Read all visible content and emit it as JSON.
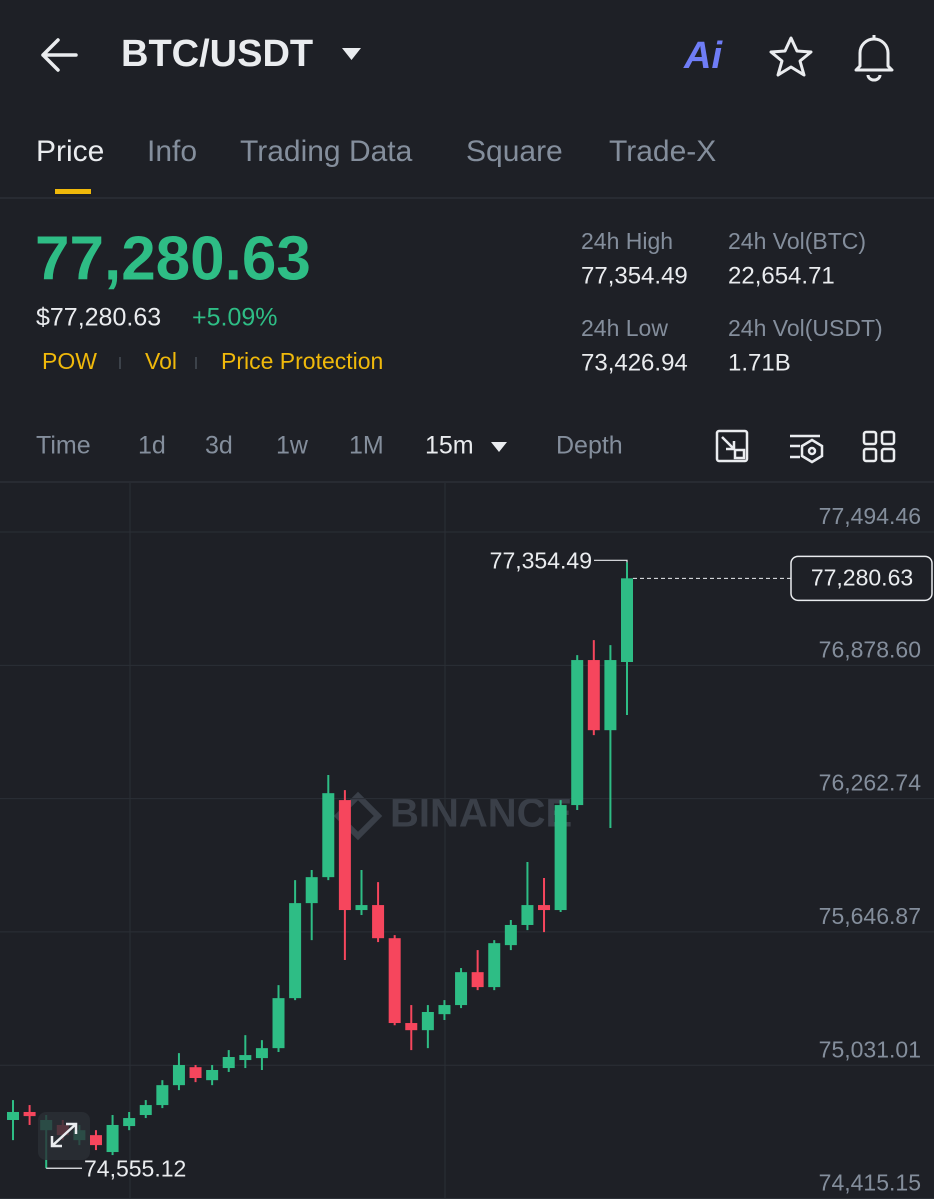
{
  "header": {
    "pair": "BTC/USDT",
    "ai": "Ai"
  },
  "tabs": {
    "items": [
      "Price",
      "Info",
      "Trading Data",
      "Square",
      "Trade-X"
    ],
    "active": 0
  },
  "price": {
    "last": "77,280.63",
    "usd": "$77,280.63",
    "change": "+5.09%",
    "tags": [
      "POW",
      "Vol",
      "Price Protection"
    ]
  },
  "stats": [
    {
      "label": "24h High",
      "value": "77,354.49"
    },
    {
      "label": "24h Vol(BTC)",
      "value": "22,654.71"
    },
    {
      "label": "24h Low",
      "value": "73,426.94"
    },
    {
      "label": "24h Vol(USDT)",
      "value": "1.71B"
    }
  ],
  "intervals": {
    "items": [
      "Time",
      "1d",
      "3d",
      "1w",
      "1M",
      "15m",
      "Depth"
    ],
    "active": 5
  },
  "chart_data": {
    "type": "candlestick",
    "watermark": "BINANCE",
    "up_color": "#2ebd85",
    "down_color": "#f6465d",
    "ylim": [
      74413,
      77721
    ],
    "yticks": [
      {
        "value": 77494.46,
        "label": "77,494.46"
      },
      {
        "value": 76878.6,
        "label": "76,878.60"
      },
      {
        "value": 76262.74,
        "label": "76,262.74"
      },
      {
        "value": 75646.87,
        "label": "75,646.87"
      },
      {
        "value": 75031.01,
        "label": "75,031.01"
      },
      {
        "value": 74415.15,
        "label": "74,415.15"
      }
    ],
    "grid": true,
    "high_label": {
      "value": 77354.49,
      "label": "77,354.49"
    },
    "low_label": {
      "value": 74555.12,
      "label": "74,555.12"
    },
    "last_price": {
      "value": 77280.63,
      "label": "77,280.63"
    },
    "open": [
      74778,
      74815,
      74731,
      74755,
      74685,
      74708,
      74630,
      74750,
      74801,
      74847,
      74939,
      75022,
      74962,
      75018,
      75055,
      75064,
      75110,
      75341,
      75780,
      75900,
      76256,
      75748,
      75771,
      75618,
      75226,
      75193,
      75267,
      75309,
      75461,
      75392,
      75586,
      75679,
      75771,
      75748,
      76233,
      76903,
      76579,
      76894
    ],
    "high": [
      74870,
      74847,
      74801,
      74778,
      74755,
      74731,
      74801,
      74815,
      74870,
      74962,
      75087,
      75032,
      75032,
      75101,
      75170,
      75147,
      75401,
      75886,
      75933,
      76372,
      76302,
      75933,
      75877,
      75632,
      75309,
      75309,
      75332,
      75480,
      75563,
      75609,
      75702,
      75970,
      75896,
      76256,
      76926,
      76995,
      76972,
      77354.49
    ],
    "low": [
      74685,
      74755,
      74555.12,
      74685,
      74662,
      74639,
      74616,
      74731,
      74787,
      74833,
      74916,
      74953,
      74939,
      75000,
      75018,
      75009,
      75092,
      75332,
      75609,
      75886,
      75517,
      75725,
      75600,
      75216,
      75101,
      75110,
      75240,
      75295,
      75378,
      75378,
      75563,
      75655,
      75646,
      75739,
      76210,
      76556,
      76127,
      76649
    ],
    "close": [
      74815,
      74796,
      74778,
      74708,
      74731,
      74662,
      74755,
      74787,
      74847,
      74939,
      75032,
      74972,
      75009,
      75069,
      75078,
      75110,
      75341,
      75780,
      75900,
      76288,
      75748,
      75771,
      75618,
      75226,
      75193,
      75277,
      75309,
      75461,
      75392,
      75595,
      75679,
      75771,
      75748,
      76233,
      76903,
      76579,
      76903,
      77280.63
    ]
  }
}
